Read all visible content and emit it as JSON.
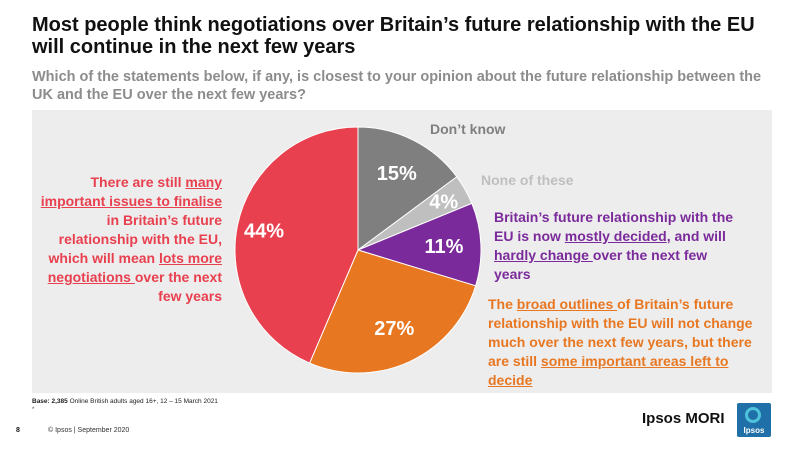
{
  "title": "Most people think negotiations over Britain’s future relationship with the EU will continue in the next few years",
  "subtitle": "Which of the statements below, if any, is closest to your opinion about the future relationship between the UK and the EU over the next few years?",
  "chart_data": {
    "type": "pie",
    "slices": [
      {
        "label": "Don’t know",
        "value": 15,
        "value_label": "15%",
        "color": "#7f7f7f"
      },
      {
        "label": "None of these",
        "value": 4,
        "value_label": "4%",
        "color": "#bfbfbf"
      },
      {
        "label": "Britain’s future relationship with the EU is now mostly decided, and will hardly change over the next few years",
        "value": 11,
        "value_label": "11%",
        "color": "#7a2a9a"
      },
      {
        "label": "The broad outlines of Britain’s future relationship with the EU will not change much over the next few years, but there are still some important areas left to decide",
        "value": 27,
        "value_label": "27%",
        "color": "#e87722"
      },
      {
        "label": "There are still many important issues to finalise in Britain’s future relationship with the EU, which will mean lots more negotiations over the next few years",
        "value": 44,
        "value_label": "44%",
        "color": "#e8404f"
      }
    ]
  },
  "labels": {
    "left": {
      "p1": "There are still ",
      "u1": "many important issues to finalise ",
      "p2": "in Britain’s future relationship with the EU, which will mean ",
      "u2": "lots more negotiations ",
      "p3": "over the next few years"
    },
    "dont_know": "Don’t know",
    "none": "None of these",
    "decided": {
      "p1": "Britain’s future relationship with the EU is now ",
      "u1": "mostly decided",
      "p2": ", and will ",
      "u2": "hardly change ",
      "p3": "over the next few years"
    },
    "broad": {
      "p1": "The ",
      "u1": "broad outlines ",
      "p2": "of Britain’s future relationship with the EU will not change much over the next few years, but there are still ",
      "u2": "some important areas left to decide"
    }
  },
  "footer": {
    "base_bold": "Base: 2,385",
    "base_rest": " Online British adults aged 16+, 12 – 15 March 2021",
    "star": "*",
    "page": "8",
    "copyright": "© Ipsos | September 2020",
    "brand": "Ipsos MORI",
    "logo_text": "Ipsos"
  }
}
